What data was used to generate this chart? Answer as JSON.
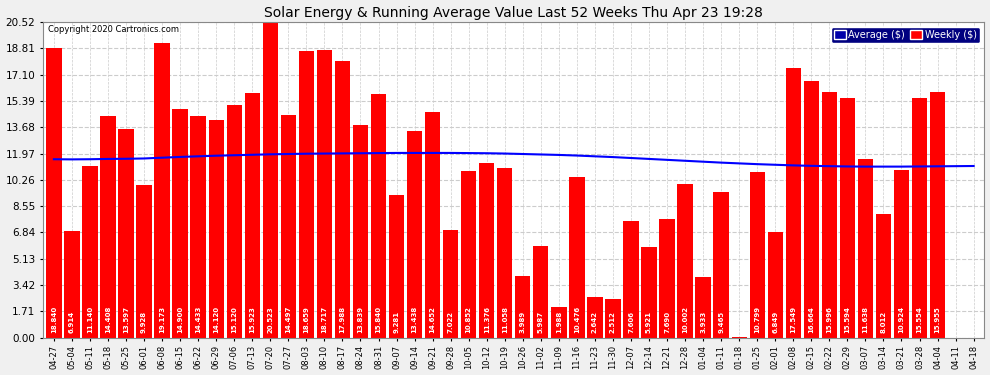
{
  "title": "Solar Energy & Running Average Value Last 52 Weeks Thu Apr 23 19:28",
  "copyright": "Copyright 2020 Cartronics.com",
  "bar_color": "#FF0000",
  "avg_line_color": "#0000FF",
  "background_color": "#F0F0F0",
  "plot_bg_color": "#FFFFFF",
  "yticks": [
    0.0,
    1.71,
    3.42,
    5.13,
    6.84,
    8.55,
    10.26,
    11.97,
    13.68,
    15.39,
    17.1,
    18.81,
    20.52
  ],
  "legend_avg_color": "#0000AA",
  "legend_weekly_color": "#FF0000",
  "categories": [
    "04-27",
    "05-04",
    "05-11",
    "05-18",
    "05-25",
    "06-01",
    "06-08",
    "06-15",
    "06-22",
    "06-29",
    "07-06",
    "07-13",
    "07-20",
    "07-27",
    "08-03",
    "08-10",
    "08-17",
    "08-24",
    "08-31",
    "09-07",
    "09-14",
    "09-21",
    "09-28",
    "10-05",
    "10-12",
    "10-19",
    "10-26",
    "11-02",
    "11-09",
    "11-16",
    "11-23",
    "11-30",
    "12-07",
    "12-14",
    "12-21",
    "12-28",
    "01-04",
    "01-11",
    "01-18",
    "01-25",
    "02-01",
    "02-08",
    "02-15",
    "02-22",
    "02-29",
    "03-07",
    "03-14",
    "03-21",
    "03-28",
    "04-04",
    "04-11",
    "04-18"
  ],
  "weekly_values": [
    18.84,
    6.914,
    11.14,
    14.408,
    13.597,
    9.928,
    19.173,
    14.9,
    14.433,
    14.12,
    15.12,
    15.923,
    20.523,
    14.497,
    18.659,
    18.717,
    17.988,
    13.839,
    15.84,
    9.281,
    13.438,
    14.652,
    7.022,
    10.852,
    11.376,
    11.058,
    3.989,
    5.987,
    1.988,
    10.476,
    2.642,
    2.512,
    7.606,
    5.921,
    7.69,
    10.002,
    3.933,
    9.465,
    0.008,
    10.799,
    6.849,
    17.549,
    16.664,
    15.996,
    15.594,
    11.638,
    8.012,
    10.924,
    15.554,
    15.955,
    0.0,
    0.0
  ],
  "avg_values": [
    11.6,
    11.59,
    11.6,
    11.62,
    11.63,
    11.65,
    11.7,
    11.75,
    11.79,
    11.83,
    11.86,
    11.89,
    11.92,
    11.94,
    11.96,
    11.97,
    11.98,
    11.99,
    12.0,
    12.01,
    12.01,
    12.01,
    12.01,
    12.0,
    11.99,
    11.97,
    11.94,
    11.91,
    11.88,
    11.84,
    11.79,
    11.74,
    11.68,
    11.62,
    11.56,
    11.5,
    11.44,
    11.38,
    11.33,
    11.28,
    11.24,
    11.2,
    11.17,
    11.15,
    11.13,
    11.12,
    11.12,
    11.12,
    11.13,
    11.14,
    11.15,
    11.16
  ],
  "ylim": [
    0,
    20.52
  ],
  "grid_color": "#CCCCCC",
  "value_label_fontsize": 5.0,
  "xlabel_fontsize": 6.0,
  "ylabel_fontsize": 7.5
}
